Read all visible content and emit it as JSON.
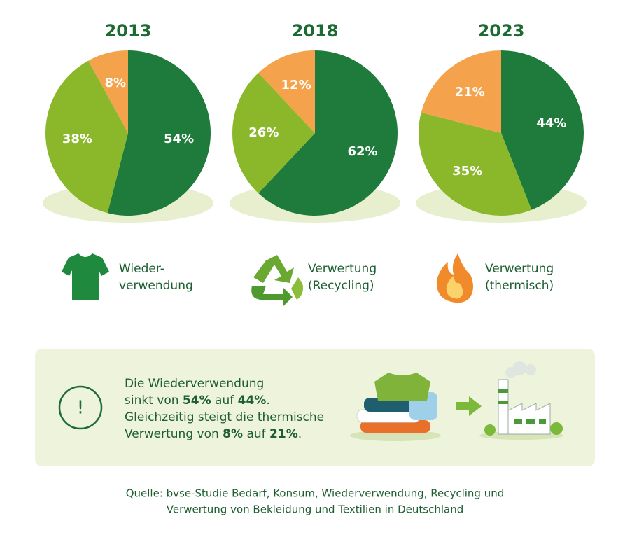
{
  "chart_data": [
    {
      "type": "pie",
      "title": "2013",
      "categories": [
        "Wieder-\nverwendung",
        "Verwertung\n(Recycling)",
        "Verwertung\n(thermisch)"
      ],
      "values": [
        54,
        38,
        8
      ],
      "value_labels": [
        "54%",
        "38%",
        "8%"
      ],
      "colors": [
        "#1f7b3b",
        "#8bb82b",
        "#f4a24c"
      ]
    },
    {
      "type": "pie",
      "title": "2018",
      "categories": [
        "Wieder-\nverwendung",
        "Verwertung\n(Recycling)",
        "Verwertung\n(thermisch)"
      ],
      "values": [
        62,
        26,
        12
      ],
      "value_labels": [
        "62%",
        "26%",
        "12%"
      ],
      "colors": [
        "#1f7b3b",
        "#8bb82b",
        "#f4a24c"
      ]
    },
    {
      "type": "pie",
      "title": "2023",
      "categories": [
        "Wieder-\nverwendung",
        "Verwertung\n(Recycling)",
        "Verwertung\n(thermisch)"
      ],
      "values": [
        44,
        35,
        21
      ],
      "value_labels": [
        "44%",
        "35%",
        "21%"
      ],
      "colors": [
        "#1f7b3b",
        "#8bb82b",
        "#f4a24c"
      ]
    }
  ],
  "notice": {
    "icon": "!",
    "lines": [
      [
        "Die Wiederverwendung"
      ],
      [
        "sinkt von ",
        "54%",
        " auf ",
        "44%",
        "."
      ],
      [
        "Gleichzeitig steigt die thermische"
      ],
      [
        "Verwertung von ",
        "8%",
        " auf ",
        "21%",
        "."
      ]
    ]
  },
  "source": [
    "Quelle: bvse-Studie Bedarf, Konsum, Wiederverwendung, Recycling und",
    "Verwertung von Bekleidung und Textilien in Deutschland"
  ]
}
